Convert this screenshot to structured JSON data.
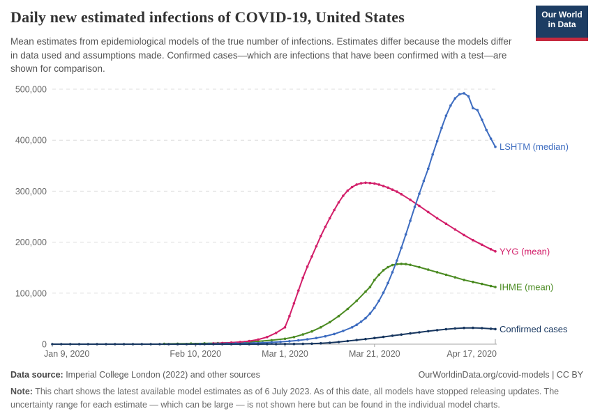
{
  "header": {
    "title": "Daily new estimated infections of COVID-19, United States",
    "subtitle": "Mean estimates from epidemiological models of the true number of infections. Estimates differ because the models differ in data used and assumptions made. Confirmed cases—which are infections that have been confirmed with a test—are shown for comparison.",
    "logo": {
      "line1": "Our World",
      "line2": "in Data",
      "bg_color": "#1d3d63",
      "stripe_color": "#c5293e"
    }
  },
  "chart_data": {
    "type": "line",
    "title": "Daily new estimated infections of COVID-19, United States",
    "x_axis": {
      "unit": "days since Jan 9, 2020",
      "tick_days": [
        0,
        32,
        52,
        72,
        99
      ],
      "tick_labels": [
        "Jan 9, 2020",
        "Feb 10, 2020",
        "Mar 1, 2020",
        "Mar 21, 2020",
        "Apr 17, 2020"
      ],
      "range_days": [
        0,
        99
      ]
    },
    "y_axis": {
      "tick_values": [
        0,
        100000,
        200000,
        300000,
        400000,
        500000
      ],
      "tick_labels": [
        "0",
        "100,000",
        "200,000",
        "300,000",
        "400,000",
        "500,000"
      ],
      "range": [
        0,
        500000
      ],
      "gridlines": "dashed"
    },
    "legend_position": "end-of-line labels",
    "series": [
      {
        "name": "IHME (mean)",
        "color": "#4b8b22",
        "points": [
          [
            25,
            500
          ],
          [
            28,
            800
          ],
          [
            31,
            1100
          ],
          [
            34,
            1500
          ],
          [
            37,
            2100
          ],
          [
            40,
            2900
          ],
          [
            43,
            4000
          ],
          [
            46,
            5600
          ],
          [
            49,
            7700
          ],
          [
            52,
            10500
          ],
          [
            54,
            14000
          ],
          [
            56,
            19000
          ],
          [
            58,
            25000
          ],
          [
            60,
            33000
          ],
          [
            62,
            43000
          ],
          [
            64,
            55000
          ],
          [
            66,
            69000
          ],
          [
            68,
            85000
          ],
          [
            70,
            103000
          ],
          [
            71,
            112000
          ],
          [
            72,
            126000
          ],
          [
            73,
            136000
          ],
          [
            74,
            145000
          ],
          [
            75,
            151000
          ],
          [
            76,
            155000
          ],
          [
            77,
            157000
          ],
          [
            78,
            157500
          ],
          [
            79,
            157000
          ],
          [
            80,
            155500
          ],
          [
            82,
            151000
          ],
          [
            84,
            146000
          ],
          [
            86,
            141000
          ],
          [
            88,
            136000
          ],
          [
            90,
            131000
          ],
          [
            92,
            126000
          ],
          [
            94,
            122000
          ],
          [
            96,
            118000
          ],
          [
            98,
            114000
          ],
          [
            99,
            112000
          ]
        ]
      },
      {
        "name": "YYG (mean)",
        "color": "#d21e69",
        "points": [
          [
            36,
            1500
          ],
          [
            38,
            2200
          ],
          [
            40,
            3000
          ],
          [
            42,
            4200
          ],
          [
            44,
            6000
          ],
          [
            46,
            9000
          ],
          [
            48,
            14000
          ],
          [
            50,
            22000
          ],
          [
            52,
            33000
          ],
          [
            53,
            55000
          ],
          [
            54,
            80000
          ],
          [
            55,
            105000
          ],
          [
            56,
            130000
          ],
          [
            57,
            152000
          ],
          [
            58,
            172000
          ],
          [
            59,
            192000
          ],
          [
            60,
            212000
          ],
          [
            61,
            230000
          ],
          [
            62,
            247000
          ],
          [
            63,
            263000
          ],
          [
            64,
            278000
          ],
          [
            65,
            291000
          ],
          [
            66,
            301000
          ],
          [
            67,
            308000
          ],
          [
            68,
            313000
          ],
          [
            69,
            315500
          ],
          [
            70,
            316500
          ],
          [
            71,
            316000
          ],
          [
            72,
            315000
          ],
          [
            73,
            313000
          ],
          [
            74,
            310000
          ],
          [
            75,
            307000
          ],
          [
            76,
            303000
          ],
          [
            77,
            299000
          ],
          [
            78,
            294000
          ],
          [
            80,
            283000
          ],
          [
            82,
            271000
          ],
          [
            84,
            259000
          ],
          [
            86,
            247000
          ],
          [
            88,
            236000
          ],
          [
            90,
            225000
          ],
          [
            92,
            214000
          ],
          [
            94,
            204000
          ],
          [
            96,
            195000
          ],
          [
            98,
            186000
          ],
          [
            99,
            182000
          ]
        ]
      },
      {
        "name": "LSHTM (median)",
        "color": "#3d6cc0",
        "points": [
          [
            33,
            400
          ],
          [
            35,
            550
          ],
          [
            37,
            750
          ],
          [
            39,
            1000
          ],
          [
            41,
            1300
          ],
          [
            43,
            1700
          ],
          [
            45,
            2200
          ],
          [
            47,
            2800
          ],
          [
            49,
            3600
          ],
          [
            51,
            4600
          ],
          [
            53,
            5800
          ],
          [
            55,
            7400
          ],
          [
            57,
            9500
          ],
          [
            59,
            12000
          ],
          [
            61,
            15500
          ],
          [
            63,
            20000
          ],
          [
            65,
            26000
          ],
          [
            67,
            33000
          ],
          [
            68,
            38000
          ],
          [
            69,
            44000
          ],
          [
            70,
            51000
          ],
          [
            71,
            60000
          ],
          [
            72,
            71000
          ],
          [
            73,
            85000
          ],
          [
            74,
            101000
          ],
          [
            75,
            120000
          ],
          [
            76,
            141000
          ],
          [
            77,
            164000
          ],
          [
            78,
            189000
          ],
          [
            79,
            215000
          ],
          [
            80,
            242000
          ],
          [
            81,
            269000
          ],
          [
            82,
            295000
          ],
          [
            83,
            320000
          ],
          [
            84,
            344000
          ],
          [
            85,
            372000
          ],
          [
            86,
            398000
          ],
          [
            87,
            424000
          ],
          [
            88,
            448000
          ],
          [
            89,
            468000
          ],
          [
            90,
            482000
          ],
          [
            91,
            490000
          ],
          [
            92,
            492000
          ],
          [
            93,
            486000
          ],
          [
            94,
            463000
          ],
          [
            95,
            459000
          ],
          [
            96,
            440000
          ],
          [
            97,
            420000
          ],
          [
            98,
            403000
          ],
          [
            99,
            387000
          ]
        ]
      },
      {
        "name": "Confirmed cases",
        "color": "#17365f",
        "points": [
          [
            0,
            0
          ],
          [
            2,
            0
          ],
          [
            4,
            0
          ],
          [
            6,
            0
          ],
          [
            8,
            0
          ],
          [
            10,
            0
          ],
          [
            12,
            0
          ],
          [
            14,
            0
          ],
          [
            16,
            0
          ],
          [
            18,
            0
          ],
          [
            20,
            0
          ],
          [
            22,
            0
          ],
          [
            24,
            0
          ],
          [
            26,
            0
          ],
          [
            28,
            0
          ],
          [
            30,
            0
          ],
          [
            32,
            0
          ],
          [
            34,
            0
          ],
          [
            36,
            0
          ],
          [
            38,
            0
          ],
          [
            40,
            10
          ],
          [
            42,
            20
          ],
          [
            44,
            30
          ],
          [
            46,
            50
          ],
          [
            48,
            80
          ],
          [
            50,
            130
          ],
          [
            52,
            210
          ],
          [
            54,
            350
          ],
          [
            56,
            600
          ],
          [
            58,
            1000
          ],
          [
            60,
            1700
          ],
          [
            62,
            2800
          ],
          [
            64,
            4300
          ],
          [
            66,
            6100
          ],
          [
            68,
            8000
          ],
          [
            70,
            10000
          ],
          [
            72,
            12000
          ],
          [
            74,
            14200
          ],
          [
            76,
            16500
          ],
          [
            78,
            18800
          ],
          [
            80,
            21000
          ],
          [
            82,
            23200
          ],
          [
            84,
            25400
          ],
          [
            86,
            27500
          ],
          [
            88,
            29300
          ],
          [
            90,
            30800
          ],
          [
            92,
            31800
          ],
          [
            94,
            32000
          ],
          [
            96,
            31400
          ],
          [
            98,
            30200
          ],
          [
            99,
            29500
          ]
        ]
      }
    ]
  },
  "footer": {
    "datasource_label": "Data source:",
    "datasource_text": " Imperial College London (2022) and other sources",
    "attribution": "OurWorldinData.org/covid-models | CC BY",
    "note_label": "Note:",
    "note_text": " This chart shows the latest available model estimates as of 6 July 2023. As of this date, all models have stopped releasing updates. The uncertainty range for each estimate — which can be large — is not shown here but can be found in the individual model charts."
  }
}
